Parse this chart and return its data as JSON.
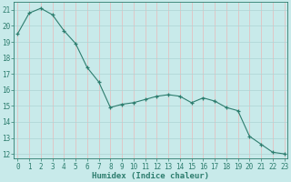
{
  "title": "",
  "xlabel": "Humidex (Indice chaleur)",
  "ylabel": "",
  "x_values": [
    0,
    1,
    2,
    3,
    4,
    5,
    6,
    7,
    8,
    9,
    10,
    11,
    12,
    13,
    14,
    15,
    16,
    17,
    18,
    19,
    20,
    21,
    22,
    23
  ],
  "y_values": [
    19.5,
    20.8,
    21.1,
    20.7,
    19.7,
    18.9,
    17.4,
    16.5,
    14.9,
    15.1,
    15.2,
    15.4,
    15.6,
    15.7,
    15.6,
    15.2,
    15.5,
    15.3,
    14.9,
    14.7,
    13.1,
    12.6,
    12.1,
    12.0
  ],
  "line_color": "#2d7d6e",
  "marker": "+",
  "bg_color": "#c8eaea",
  "grid_color_h": "#aed4d4",
  "grid_color_v": "#e8b8b8",
  "ylim_min": 11.7,
  "ylim_max": 21.5,
  "xlim_min": -0.3,
  "xlim_max": 23.3,
  "yticks": [
    12,
    13,
    14,
    15,
    16,
    17,
    18,
    19,
    20,
    21
  ],
  "xticks": [
    0,
    1,
    2,
    3,
    4,
    5,
    6,
    7,
    8,
    9,
    10,
    11,
    12,
    13,
    14,
    15,
    16,
    17,
    18,
    19,
    20,
    21,
    22,
    23
  ],
  "tick_fontsize": 5.5,
  "xlabel_fontsize": 6.5,
  "line_width": 0.8,
  "marker_size": 3.5
}
